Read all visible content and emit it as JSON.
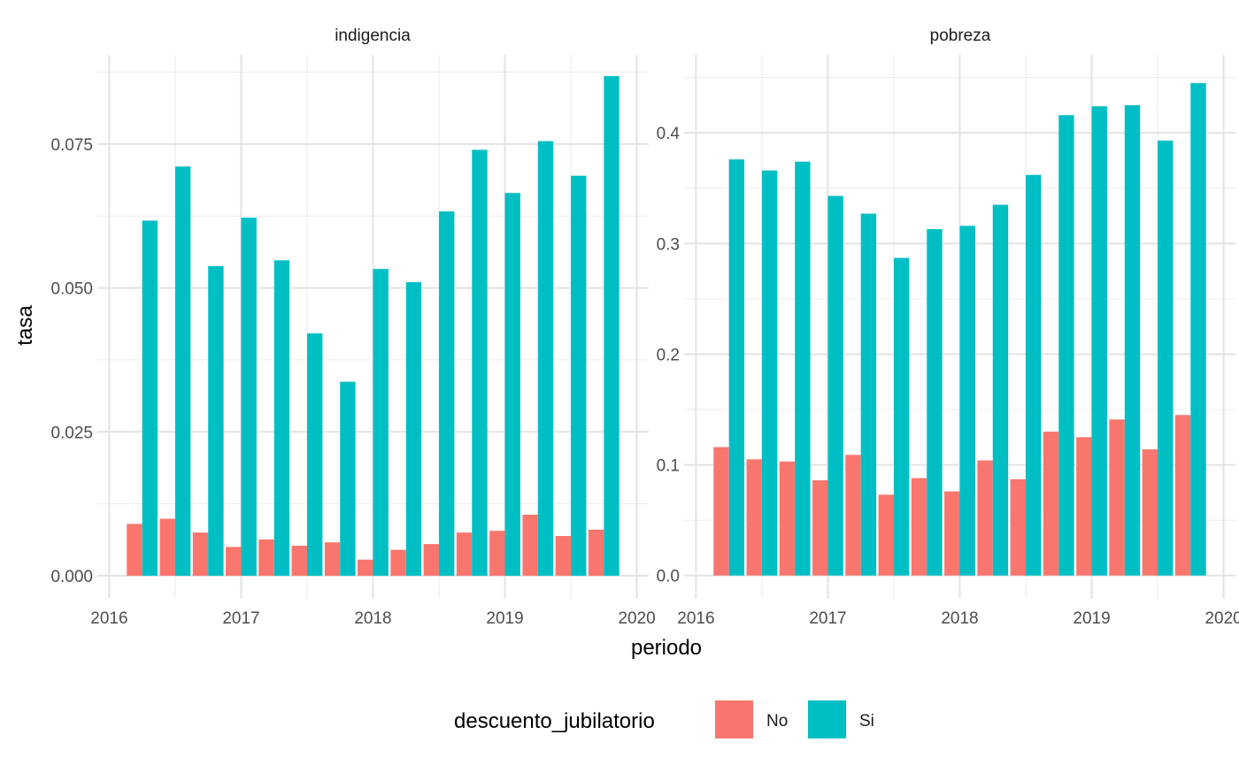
{
  "chart_data": {
    "type": "bar",
    "xlabel": "periodo",
    "ylabel": "tasa",
    "x_ticks": [
      2016,
      2017,
      2018,
      2019,
      2020
    ],
    "x_tick_labels": [
      "2016",
      "2017",
      "2018",
      "2019",
      "2020"
    ],
    "x": [
      2016.25,
      2016.5,
      2016.75,
      2017.0,
      2017.25,
      2017.5,
      2017.75,
      2018.0,
      2018.25,
      2018.5,
      2018.75,
      2019.0,
      2019.25,
      2019.5,
      2019.75
    ],
    "legend": {
      "title": "descuento_jubilatorio",
      "position": "bottom",
      "items": [
        {
          "label": "No",
          "color": "#F8766D"
        },
        {
          "label": "Si",
          "color": "#00BFC4"
        }
      ]
    },
    "grid": true,
    "panels": [
      {
        "title": "indigencia",
        "ylim": [
          -0.004,
          0.0905
        ],
        "y_ticks": [
          0.0,
          0.025,
          0.05,
          0.075
        ],
        "y_tick_labels": [
          "0.000",
          "0.025",
          "0.050",
          "0.075"
        ],
        "series": [
          {
            "name": "No",
            "values": [
              0.009,
              0.0099,
              0.0075,
              0.005,
              0.0063,
              0.0052,
              0.0058,
              0.0028,
              0.0045,
              0.0055,
              0.0075,
              0.0078,
              0.0106,
              0.0069,
              0.008
            ]
          },
          {
            "name": "Si",
            "values": [
              0.0617,
              0.0711,
              0.0538,
              0.0622,
              0.0548,
              0.0421,
              0.0337,
              0.0533,
              0.051,
              0.0633,
              0.074,
              0.0665,
              0.0755,
              0.0695,
              0.0868
            ]
          }
        ]
      },
      {
        "title": "pobreza",
        "ylim": [
          -0.021,
          0.4705
        ],
        "y_ticks": [
          0.0,
          0.1,
          0.2,
          0.3,
          0.4
        ],
        "y_tick_labels": [
          "0.0",
          "0.1",
          "0.2",
          "0.3",
          "0.4"
        ],
        "series": [
          {
            "name": "No",
            "values": [
              0.116,
              0.105,
              0.103,
              0.086,
              0.109,
              0.073,
              0.088,
              0.076,
              0.104,
              0.087,
              0.13,
              0.125,
              0.141,
              0.114,
              0.145
            ]
          },
          {
            "name": "Si",
            "values": [
              0.376,
              0.366,
              0.374,
              0.343,
              0.327,
              0.287,
              0.313,
              0.316,
              0.335,
              0.362,
              0.416,
              0.424,
              0.425,
              0.393,
              0.445
            ]
          }
        ]
      }
    ]
  }
}
